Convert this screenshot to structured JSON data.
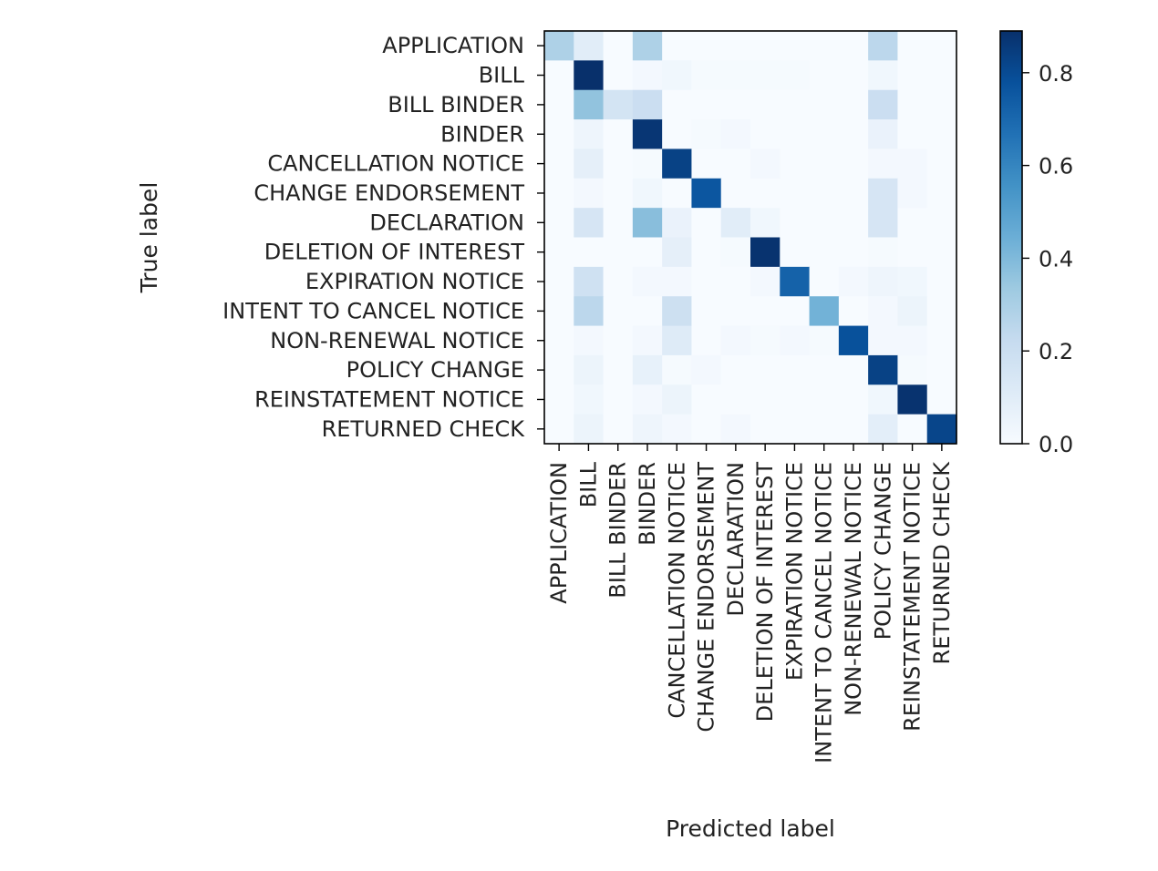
{
  "chart_data": {
    "type": "heatmap",
    "title": "",
    "xlabel": "Predicted label",
    "ylabel": "True label",
    "labels": [
      "APPLICATION",
      "BILL",
      "BILL BINDER",
      "BINDER",
      "CANCELLATION NOTICE",
      "CHANGE ENDORSEMENT",
      "DECLARATION",
      "DELETION OF INTEREST",
      "EXPIRATION NOTICE",
      "INTENT TO CANCEL NOTICE",
      "NON-RENEWAL NOTICE",
      "POLICY CHANGE",
      "REINSTATEMENT NOTICE",
      "RETURNED CHECK"
    ],
    "matrix": [
      [
        0.29,
        0.1,
        0.0,
        0.29,
        0.0,
        0.0,
        0.0,
        0.0,
        0.0,
        0.0,
        0.0,
        0.25,
        0.0,
        0.0
      ],
      [
        0.0,
        0.89,
        0.0,
        0.02,
        0.03,
        0.01,
        0.01,
        0.01,
        0.01,
        0.0,
        0.0,
        0.03,
        0.0,
        0.0
      ],
      [
        0.0,
        0.36,
        0.16,
        0.2,
        0.0,
        0.0,
        0.0,
        0.0,
        0.0,
        0.0,
        0.0,
        0.2,
        0.0,
        0.0
      ],
      [
        0.0,
        0.04,
        0.0,
        0.87,
        0.0,
        0.01,
        0.02,
        0.0,
        0.0,
        0.0,
        0.0,
        0.06,
        0.0,
        0.0
      ],
      [
        0.0,
        0.08,
        0.0,
        0.01,
        0.83,
        0.0,
        0.0,
        0.02,
        0.0,
        0.0,
        0.0,
        0.02,
        0.02,
        0.0
      ],
      [
        0.0,
        0.02,
        0.0,
        0.03,
        0.0,
        0.76,
        0.0,
        0.0,
        0.0,
        0.0,
        0.0,
        0.15,
        0.02,
        0.0
      ],
      [
        0.0,
        0.15,
        0.0,
        0.38,
        0.06,
        0.0,
        0.1,
        0.03,
        0.0,
        0.0,
        0.0,
        0.15,
        0.0,
        0.0
      ],
      [
        0.0,
        0.0,
        0.0,
        0.0,
        0.08,
        0.0,
        0.01,
        0.88,
        0.0,
        0.0,
        0.0,
        0.01,
        0.0,
        0.0
      ],
      [
        0.0,
        0.18,
        0.0,
        0.02,
        0.02,
        0.0,
        0.0,
        0.02,
        0.72,
        0.0,
        0.02,
        0.04,
        0.03,
        0.0
      ],
      [
        0.0,
        0.25,
        0.0,
        0.0,
        0.19,
        0.0,
        0.0,
        0.0,
        0.0,
        0.43,
        0.0,
        0.02,
        0.05,
        0.0
      ],
      [
        0.0,
        0.02,
        0.0,
        0.02,
        0.11,
        0.0,
        0.02,
        0.01,
        0.02,
        0.01,
        0.78,
        0.02,
        0.02,
        0.0
      ],
      [
        0.0,
        0.05,
        0.0,
        0.07,
        0.01,
        0.02,
        0.0,
        0.0,
        0.0,
        0.0,
        0.0,
        0.83,
        0.01,
        0.0
      ],
      [
        0.0,
        0.03,
        0.0,
        0.02,
        0.05,
        0.0,
        0.0,
        0.0,
        0.0,
        0.0,
        0.0,
        0.03,
        0.88,
        0.0
      ],
      [
        0.0,
        0.05,
        0.0,
        0.04,
        0.02,
        0.0,
        0.02,
        0.0,
        0.0,
        0.0,
        0.0,
        0.09,
        0.0,
        0.82
      ]
    ],
    "colormap": "Blues",
    "colormap_stops": [
      "#f7fbff",
      "#deebf7",
      "#c6dbef",
      "#9ecae1",
      "#6baed6",
      "#4292c6",
      "#2171b5",
      "#08519c",
      "#08306b"
    ],
    "colorbar": {
      "min": 0.0,
      "max": 0.89,
      "ticks": [
        0.0,
        0.2,
        0.4,
        0.6,
        0.8
      ],
      "tick_labels": [
        "0.0",
        "0.2",
        "0.4",
        "0.6",
        "0.8"
      ]
    },
    "grid": false,
    "axis_color": "#000000",
    "text_color": "#222222"
  }
}
